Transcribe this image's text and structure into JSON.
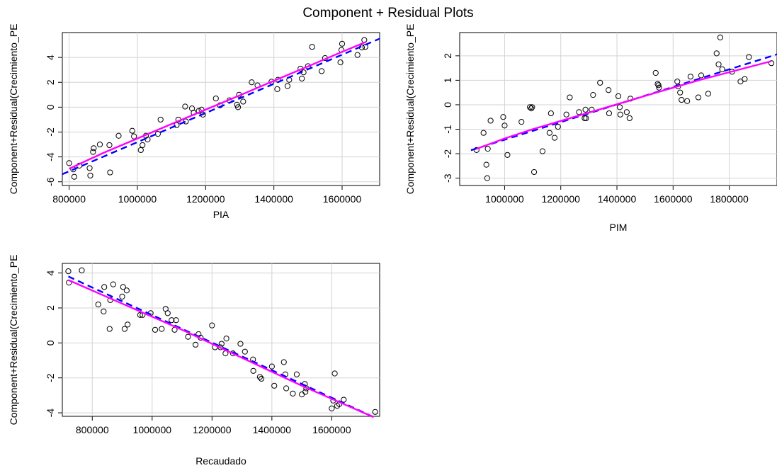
{
  "figure": {
    "title": "Component + Residual Plots"
  },
  "chart_data": [
    {
      "type": "scatter",
      "xlabel": "PIA",
      "ylabel": "Component+Residual(Crecimiento_PE",
      "xlim": [
        780000,
        1710000
      ],
      "ylim": [
        -6.3,
        6.0
      ],
      "xticks": [
        800000,
        1000000,
        1200000,
        1400000,
        1600000
      ],
      "xtick_labels": [
        "800000",
        "1000000",
        "1200000",
        "1400000",
        "1600000"
      ],
      "yticks": [
        -6,
        -4,
        -2,
        0,
        2,
        4
      ],
      "ytick_labels": [
        "-6",
        "-4",
        "-2",
        "0",
        "2",
        "4"
      ],
      "grid": true,
      "line_colors": {
        "linear_fit": "#0000ff",
        "smooth_fit": "#ff00ff"
      },
      "linear_fit": [
        [
          780000,
          -5.39
        ],
        [
          1710000,
          5.51
        ]
      ],
      "smooth_fit": [
        [
          800000,
          -4.95
        ],
        [
          900000,
          -3.68
        ],
        [
          1000000,
          -2.52
        ],
        [
          1100000,
          -1.35
        ],
        [
          1200000,
          -0.2
        ],
        [
          1300000,
          0.95
        ],
        [
          1400000,
          2.12
        ],
        [
          1500000,
          3.28
        ],
        [
          1600000,
          4.45
        ],
        [
          1670000,
          5.25
        ]
      ],
      "points": [
        [
          800000,
          -4.5
        ],
        [
          812000,
          -5.0
        ],
        [
          815000,
          -5.6
        ],
        [
          830000,
          -4.7
        ],
        [
          860000,
          -4.9
        ],
        [
          862000,
          -5.5
        ],
        [
          870000,
          -3.6
        ],
        [
          872000,
          -3.3
        ],
        [
          890000,
          -3.0
        ],
        [
          918000,
          -3.05
        ],
        [
          920000,
          -5.25
        ],
        [
          945000,
          -2.3
        ],
        [
          985000,
          -1.9
        ],
        [
          990000,
          -2.35
        ],
        [
          1010000,
          -3.45
        ],
        [
          1015000,
          -3.05
        ],
        [
          1025000,
          -2.3
        ],
        [
          1030000,
          -2.6
        ],
        [
          1060000,
          -2.15
        ],
        [
          1068000,
          -1.0
        ],
        [
          1115000,
          -1.45
        ],
        [
          1120000,
          -1.0
        ],
        [
          1140000,
          0.05
        ],
        [
          1142000,
          -1.15
        ],
        [
          1160000,
          -0.1
        ],
        [
          1165000,
          -0.45
        ],
        [
          1180000,
          -0.3
        ],
        [
          1188000,
          -0.2
        ],
        [
          1192000,
          -0.6
        ],
        [
          1230000,
          0.7
        ],
        [
          1242000,
          0.15
        ],
        [
          1270000,
          0.55
        ],
        [
          1292000,
          0.2
        ],
        [
          1295000,
          0.0
        ],
        [
          1298000,
          1.0
        ],
        [
          1310000,
          0.45
        ],
        [
          1335000,
          2.0
        ],
        [
          1352000,
          1.75
        ],
        [
          1393000,
          2.05
        ],
        [
          1410000,
          1.45
        ],
        [
          1412000,
          2.2
        ],
        [
          1440000,
          1.7
        ],
        [
          1445000,
          2.2
        ],
        [
          1478000,
          3.1
        ],
        [
          1482000,
          2.3
        ],
        [
          1487000,
          2.8
        ],
        [
          1500000,
          3.3
        ],
        [
          1512000,
          4.85
        ],
        [
          1540000,
          2.9
        ],
        [
          1550000,
          3.95
        ],
        [
          1595000,
          3.6
        ],
        [
          1598000,
          4.6
        ],
        [
          1600000,
          5.1
        ],
        [
          1645000,
          4.2
        ],
        [
          1658000,
          4.8
        ],
        [
          1665000,
          5.4
        ],
        [
          1668000,
          4.85
        ]
      ]
    },
    {
      "type": "scatter",
      "xlabel": "PIM",
      "ylabel": "Component+Residual(Crecimiento_PE",
      "xlim": [
        840000,
        1970000
      ],
      "ylim": [
        -3.3,
        2.95
      ],
      "xticks": [
        1000000,
        1200000,
        1400000,
        1600000,
        1800000
      ],
      "xtick_labels": [
        "1000000",
        "1200000",
        "1400000",
        "1600000",
        "1800000"
      ],
      "yticks": [
        -3,
        -2,
        -1,
        0,
        1,
        2
      ],
      "ytick_labels": [
        "-3",
        "-2",
        "-1",
        "0",
        "1",
        "2"
      ],
      "grid": true,
      "line_colors": {
        "linear_fit": "#0000ff",
        "smooth_fit": "#ff00ff"
      },
      "linear_fit": [
        [
          880000,
          -1.86
        ],
        [
          1970000,
          2.06
        ]
      ],
      "smooth_fit": [
        [
          900000,
          -1.8
        ],
        [
          1000000,
          -1.38
        ],
        [
          1100000,
          -1.0
        ],
        [
          1200000,
          -0.66
        ],
        [
          1300000,
          -0.32
        ],
        [
          1400000,
          0.02
        ],
        [
          1500000,
          0.36
        ],
        [
          1600000,
          0.7
        ],
        [
          1700000,
          1.03
        ],
        [
          1800000,
          1.33
        ],
        [
          1950000,
          1.78
        ]
      ],
      "points": [
        [
          900000,
          -1.85
        ],
        [
          925000,
          -1.15
        ],
        [
          935000,
          -2.45
        ],
        [
          938000,
          -3.0
        ],
        [
          940000,
          -1.8
        ],
        [
          950000,
          -0.65
        ],
        [
          995000,
          -0.5
        ],
        [
          1000000,
          -0.85
        ],
        [
          1010000,
          -2.05
        ],
        [
          1060000,
          -0.7
        ],
        [
          1090000,
          -0.1
        ],
        [
          1095000,
          -0.15
        ],
        [
          1098000,
          -0.1
        ],
        [
          1105000,
          -2.75
        ],
        [
          1135000,
          -1.9
        ],
        [
          1160000,
          -1.15
        ],
        [
          1165000,
          -0.35
        ],
        [
          1178000,
          -1.35
        ],
        [
          1190000,
          -0.9
        ],
        [
          1220000,
          -0.4
        ],
        [
          1232000,
          0.3
        ],
        [
          1265000,
          -0.3
        ],
        [
          1285000,
          -0.55
        ],
        [
          1288000,
          -0.2
        ],
        [
          1290000,
          -0.55
        ],
        [
          1310000,
          -0.2
        ],
        [
          1315000,
          0.4
        ],
        [
          1340000,
          0.9
        ],
        [
          1370000,
          0.6
        ],
        [
          1372000,
          -0.35
        ],
        [
          1405000,
          0.35
        ],
        [
          1410000,
          -0.1
        ],
        [
          1412000,
          -0.4
        ],
        [
          1435000,
          -0.3
        ],
        [
          1445000,
          -0.55
        ],
        [
          1448000,
          0.25
        ],
        [
          1538000,
          1.3
        ],
        [
          1545000,
          0.85
        ],
        [
          1548000,
          0.8
        ],
        [
          1550000,
          0.7
        ],
        [
          1615000,
          0.95
        ],
        [
          1618000,
          0.75
        ],
        [
          1625000,
          0.5
        ],
        [
          1630000,
          0.2
        ],
        [
          1650000,
          0.15
        ],
        [
          1662000,
          1.15
        ],
        [
          1690000,
          0.3
        ],
        [
          1700000,
          1.2
        ],
        [
          1725000,
          0.45
        ],
        [
          1755000,
          2.1
        ],
        [
          1762000,
          1.65
        ],
        [
          1768000,
          2.75
        ],
        [
          1775000,
          1.45
        ],
        [
          1810000,
          1.35
        ],
        [
          1840000,
          0.95
        ],
        [
          1855000,
          1.05
        ],
        [
          1870000,
          1.95
        ],
        [
          1950000,
          1.7
        ]
      ]
    },
    {
      "type": "scatter",
      "xlabel": "Recaudado",
      "ylabel": "Component+Residual(Crecimiento_PE",
      "xlim": [
        700000,
        1760000
      ],
      "ylim": [
        -4.2,
        4.55
      ],
      "xticks": [
        800000,
        1000000,
        1200000,
        1400000,
        1600000
      ],
      "xtick_labels": [
        "800000",
        "1000000",
        "1200000",
        "1400000",
        "1600000"
      ],
      "yticks": [
        -4,
        -2,
        0,
        2,
        4
      ],
      "ytick_labels": [
        "-4",
        "-2",
        "0",
        "2",
        "4"
      ],
      "grid": true,
      "line_colors": {
        "linear_fit": "#0000ff",
        "smooth_fit": "#ff00ff"
      },
      "linear_fit": [
        [
          720000,
          3.8
        ],
        [
          1750000,
          -4.32
        ]
      ],
      "smooth_fit": [
        [
          720000,
          3.6
        ],
        [
          800000,
          3.0
        ],
        [
          900000,
          2.25
        ],
        [
          1000000,
          1.5
        ],
        [
          1100000,
          0.75
        ],
        [
          1200000,
          -0.05
        ],
        [
          1300000,
          -0.85
        ],
        [
          1400000,
          -1.65
        ],
        [
          1500000,
          -2.45
        ],
        [
          1600000,
          -3.2
        ],
        [
          1740000,
          -4.25
        ]
      ],
      "points": [
        [
          720000,
          4.1
        ],
        [
          722000,
          3.45
        ],
        [
          765000,
          4.15
        ],
        [
          820000,
          2.2
        ],
        [
          838000,
          1.8
        ],
        [
          840000,
          3.2
        ],
        [
          858000,
          0.8
        ],
        [
          860000,
          2.45
        ],
        [
          870000,
          3.35
        ],
        [
          900000,
          2.65
        ],
        [
          903000,
          3.2
        ],
        [
          908000,
          0.8
        ],
        [
          915000,
          3.0
        ],
        [
          918000,
          1.05
        ],
        [
          960000,
          1.6
        ],
        [
          968000,
          1.6
        ],
        [
          995000,
          1.7
        ],
        [
          1010000,
          0.75
        ],
        [
          1032000,
          0.8
        ],
        [
          1045000,
          1.95
        ],
        [
          1052000,
          1.7
        ],
        [
          1065000,
          1.3
        ],
        [
          1075000,
          0.75
        ],
        [
          1080000,
          1.3
        ],
        [
          1120000,
          0.35
        ],
        [
          1145000,
          -0.1
        ],
        [
          1155000,
          0.5
        ],
        [
          1162000,
          0.3
        ],
        [
          1200000,
          1.0
        ],
        [
          1210000,
          -0.25
        ],
        [
          1228000,
          -0.25
        ],
        [
          1232000,
          -0.05
        ],
        [
          1245000,
          -0.6
        ],
        [
          1248000,
          0.25
        ],
        [
          1270000,
          -0.6
        ],
        [
          1295000,
          -0.05
        ],
        [
          1310000,
          -0.5
        ],
        [
          1337000,
          -0.95
        ],
        [
          1338000,
          -1.6
        ],
        [
          1360000,
          -1.95
        ],
        [
          1365000,
          -2.05
        ],
        [
          1400000,
          -1.35
        ],
        [
          1408000,
          -2.45
        ],
        [
          1440000,
          -1.1
        ],
        [
          1445000,
          -1.8
        ],
        [
          1448000,
          -2.6
        ],
        [
          1470000,
          -2.9
        ],
        [
          1483000,
          -1.8
        ],
        [
          1500000,
          -2.95
        ],
        [
          1510000,
          -2.35
        ],
        [
          1512000,
          -2.8
        ],
        [
          1515000,
          -2.6
        ],
        [
          1600000,
          -3.75
        ],
        [
          1605000,
          -3.3
        ],
        [
          1610000,
          -1.75
        ],
        [
          1618000,
          -3.6
        ],
        [
          1625000,
          -3.5
        ],
        [
          1640000,
          -3.25
        ],
        [
          1745000,
          -3.95
        ]
      ]
    }
  ]
}
